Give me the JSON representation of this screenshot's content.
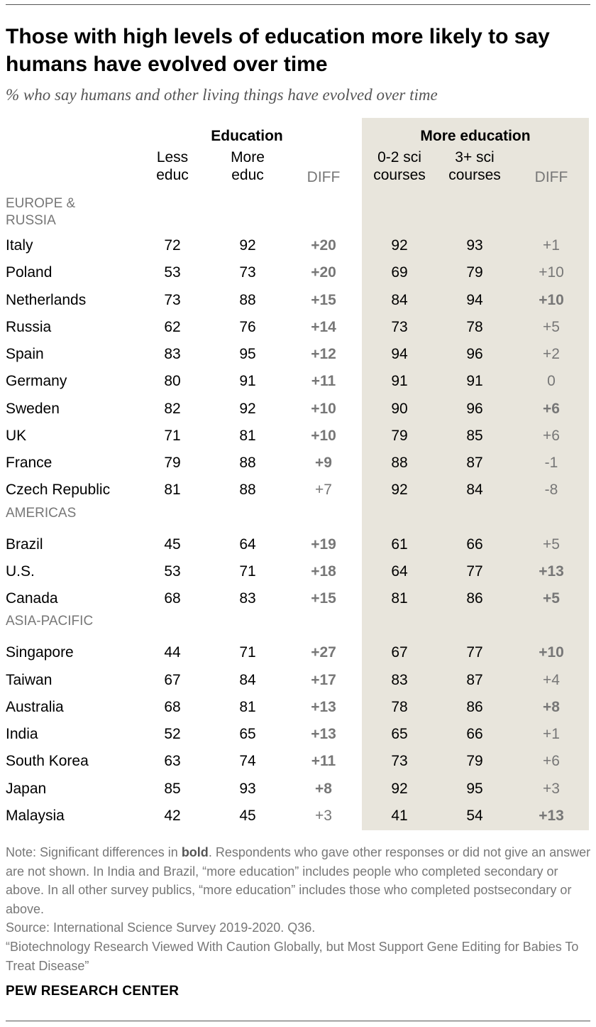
{
  "title": "Those with high levels of education more likely to say humans have evolved over time",
  "subtitle": "% who say humans and other living things have evolved over time",
  "chart_data": {
    "type": "table",
    "column_groups": [
      "Education",
      "More education"
    ],
    "columns": [
      {
        "key": "less_educ",
        "label_line1": "Less",
        "label_line2": "educ"
      },
      {
        "key": "more_educ",
        "label_line1": "More",
        "label_line2": "educ"
      },
      {
        "key": "diff_educ",
        "label_line1": "",
        "label_line2": "DIFF"
      },
      {
        "key": "sci_0_2",
        "label_line1": "0-2 sci",
        "label_line2": "courses"
      },
      {
        "key": "sci_3_plus",
        "label_line1": "3+ sci",
        "label_line2": "courses"
      },
      {
        "key": "diff_sci",
        "label_line1": "",
        "label_line2": "DIFF"
      }
    ],
    "regions": [
      {
        "name_line1": "EUROPE &",
        "name_line2": "RUSSIA",
        "rows": [
          {
            "country": "Italy",
            "less_educ": "72",
            "more_educ": "92",
            "diff_educ": "+20",
            "diff_educ_sig": true,
            "sci_0_2": "92",
            "sci_3_plus": "93",
            "diff_sci": "+1",
            "diff_sci_sig": false
          },
          {
            "country": "Poland",
            "less_educ": "53",
            "more_educ": "73",
            "diff_educ": "+20",
            "diff_educ_sig": true,
            "sci_0_2": "69",
            "sci_3_plus": "79",
            "diff_sci": "+10",
            "diff_sci_sig": false
          },
          {
            "country": "Netherlands",
            "less_educ": "73",
            "more_educ": "88",
            "diff_educ": "+15",
            "diff_educ_sig": true,
            "sci_0_2": "84",
            "sci_3_plus": "94",
            "diff_sci": "+10",
            "diff_sci_sig": true
          },
          {
            "country": "Russia",
            "less_educ": "62",
            "more_educ": "76",
            "diff_educ": "+14",
            "diff_educ_sig": true,
            "sci_0_2": "73",
            "sci_3_plus": "78",
            "diff_sci": "+5",
            "diff_sci_sig": false
          },
          {
            "country": "Spain",
            "less_educ": "83",
            "more_educ": "95",
            "diff_educ": "+12",
            "diff_educ_sig": true,
            "sci_0_2": "94",
            "sci_3_plus": "96",
            "diff_sci": "+2",
            "diff_sci_sig": false
          },
          {
            "country": "Germany",
            "less_educ": "80",
            "more_educ": "91",
            "diff_educ": "+11",
            "diff_educ_sig": true,
            "sci_0_2": "91",
            "sci_3_plus": "91",
            "diff_sci": "0",
            "diff_sci_sig": false
          },
          {
            "country": "Sweden",
            "less_educ": "82",
            "more_educ": "92",
            "diff_educ": "+10",
            "diff_educ_sig": true,
            "sci_0_2": "90",
            "sci_3_plus": "96",
            "diff_sci": "+6",
            "diff_sci_sig": true
          },
          {
            "country": "UK",
            "less_educ": "71",
            "more_educ": "81",
            "diff_educ": "+10",
            "diff_educ_sig": true,
            "sci_0_2": "79",
            "sci_3_plus": "85",
            "diff_sci": "+6",
            "diff_sci_sig": false
          },
          {
            "country": "France",
            "less_educ": "79",
            "more_educ": "88",
            "diff_educ": "+9",
            "diff_educ_sig": true,
            "sci_0_2": "88",
            "sci_3_plus": "87",
            "diff_sci": "-1",
            "diff_sci_sig": false
          },
          {
            "country": "Czech Republic",
            "less_educ": "81",
            "more_educ": "88",
            "diff_educ": "+7",
            "diff_educ_sig": false,
            "sci_0_2": "92",
            "sci_3_plus": "84",
            "diff_sci": "-8",
            "diff_sci_sig": false
          }
        ]
      },
      {
        "name_line1": "AMERICAS",
        "name_line2": "",
        "rows": [
          {
            "country": "Brazil",
            "less_educ": "45",
            "more_educ": "64",
            "diff_educ": "+19",
            "diff_educ_sig": true,
            "sci_0_2": "61",
            "sci_3_plus": "66",
            "diff_sci": "+5",
            "diff_sci_sig": false
          },
          {
            "country": "U.S.",
            "less_educ": "53",
            "more_educ": "71",
            "diff_educ": "+18",
            "diff_educ_sig": true,
            "sci_0_2": "64",
            "sci_3_plus": "77",
            "diff_sci": "+13",
            "diff_sci_sig": true
          },
          {
            "country": "Canada",
            "less_educ": "68",
            "more_educ": "83",
            "diff_educ": "+15",
            "diff_educ_sig": true,
            "sci_0_2": "81",
            "sci_3_plus": "86",
            "diff_sci": "+5",
            "diff_sci_sig": true
          }
        ]
      },
      {
        "name_line1": "ASIA-PACIFIC",
        "name_line2": "",
        "rows": [
          {
            "country": "Singapore",
            "less_educ": "44",
            "more_educ": "71",
            "diff_educ": "+27",
            "diff_educ_sig": true,
            "sci_0_2": "67",
            "sci_3_plus": "77",
            "diff_sci": "+10",
            "diff_sci_sig": true
          },
          {
            "country": "Taiwan",
            "less_educ": "67",
            "more_educ": "84",
            "diff_educ": "+17",
            "diff_educ_sig": true,
            "sci_0_2": "83",
            "sci_3_plus": "87",
            "diff_sci": "+4",
            "diff_sci_sig": false
          },
          {
            "country": "Australia",
            "less_educ": "68",
            "more_educ": "81",
            "diff_educ": "+13",
            "diff_educ_sig": true,
            "sci_0_2": "78",
            "sci_3_plus": "86",
            "diff_sci": "+8",
            "diff_sci_sig": true
          },
          {
            "country": "India",
            "less_educ": "52",
            "more_educ": "65",
            "diff_educ": "+13",
            "diff_educ_sig": true,
            "sci_0_2": "65",
            "sci_3_plus": "66",
            "diff_sci": "+1",
            "diff_sci_sig": false
          },
          {
            "country": "South Korea",
            "less_educ": "63",
            "more_educ": "74",
            "diff_educ": "+11",
            "diff_educ_sig": true,
            "sci_0_2": "73",
            "sci_3_plus": "79",
            "diff_sci": "+6",
            "diff_sci_sig": false
          },
          {
            "country": "Japan",
            "less_educ": "85",
            "more_educ": "93",
            "diff_educ": "+8",
            "diff_educ_sig": true,
            "sci_0_2": "92",
            "sci_3_plus": "95",
            "diff_sci": "+3",
            "diff_sci_sig": false
          },
          {
            "country": "Malaysia",
            "less_educ": "42",
            "more_educ": "45",
            "diff_educ": "+3",
            "diff_educ_sig": false,
            "sci_0_2": "41",
            "sci_3_plus": "54",
            "diff_sci": "+13",
            "diff_sci_sig": true
          }
        ]
      }
    ]
  },
  "note": {
    "prefix": "Note: Significant differences in ",
    "bold_word": "bold",
    "rest": ". Respondents who gave other responses or did not give an answer are not shown. In India and Brazil, “more education” includes people who completed secondary or above. In all other survey publics, “more education” includes those who completed postsecondary or above."
  },
  "source": "Source: International Science Survey 2019-2020. Q36.",
  "report": "“Biotechnology Research Viewed With Caution Globally, but Most Support Gene Editing for Babies To Treat Disease”",
  "brand": "PEW RESEARCH CENTER",
  "colors": {
    "shade": "#e8e5dc",
    "muted_text": "#777777",
    "text": "#000000",
    "rule": "#555555"
  }
}
